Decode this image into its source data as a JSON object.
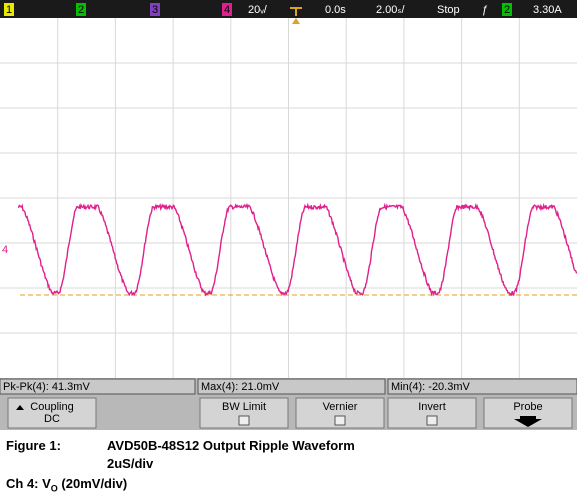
{
  "status_bar": {
    "ch1": "1",
    "ch2": "2",
    "ch3": "3",
    "ch4": "4",
    "vdiv": "20ᵥ/",
    "delay": "0.0s",
    "tdiv": "2.00ₛ/",
    "run": "Stop",
    "trig_slope": "ƒ",
    "trig_ch": "2",
    "trig_level": "3.30A"
  },
  "channel_marker": "4",
  "measurements": [
    "Pk-Pk(4): 41.3mV",
    "Max(4): 21.0mV",
    "Min(4): -20.3mV"
  ],
  "softkeys": [
    {
      "label": "Coupling",
      "value": "DC"
    },
    {
      "label": "BW Limit"
    },
    {
      "label": "Vernier"
    },
    {
      "label": "Invert"
    },
    {
      "label": "Probe"
    }
  ],
  "caption": {
    "figure": "Figure 1:",
    "title": "AVD50B-48S12  Output Ripple Waveform",
    "timebase": "2uS/div",
    "channel_prefix": "Ch 4: V",
    "channel_sub": "O",
    "channel_suffix": " (20mV/div)"
  }
}
